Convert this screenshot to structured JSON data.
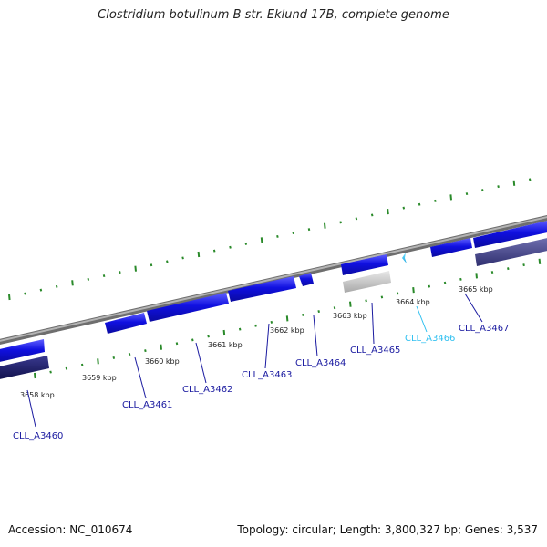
{
  "title": "Clostridium botulinum B str. Eklund 17B, complete genome",
  "footer": {
    "accession_text": "Accession: NC_010674",
    "summary_text": "Topology: circular; Length: 3,800,327 bp; Genes: 3,537"
  },
  "colors": {
    "gene_forward": "#1010e0",
    "gene_reverse": "#1a1a6e",
    "gene_highlight": "#30c8f0",
    "gene_other": "#c8c8c8",
    "gene_reverse_pale": "#4a4a90",
    "backbone": "#8a8a8a",
    "tick": "#2a8a2a",
    "label_default": "#1a1aa0",
    "label_highlight": "#30c0f0"
  },
  "scale": {
    "tick_labels": [
      "3658 kbp",
      "3659 kbp",
      "3660 kbp",
      "3661 kbp",
      "3662 kbp",
      "3663 kbp",
      "3664 kbp",
      "3665 kbp"
    ]
  },
  "genes": [
    {
      "locus": "CLL_A3460",
      "highlight": false
    },
    {
      "locus": "CLL_A3461",
      "highlight": false
    },
    {
      "locus": "CLL_A3462",
      "highlight": false
    },
    {
      "locus": "CLL_A3463",
      "highlight": false
    },
    {
      "locus": "CLL_A3464",
      "highlight": false
    },
    {
      "locus": "CLL_A3465",
      "highlight": false
    },
    {
      "locus": "CLL_A3466",
      "highlight": true
    },
    {
      "locus": "CLL_A3467",
      "highlight": false
    }
  ]
}
